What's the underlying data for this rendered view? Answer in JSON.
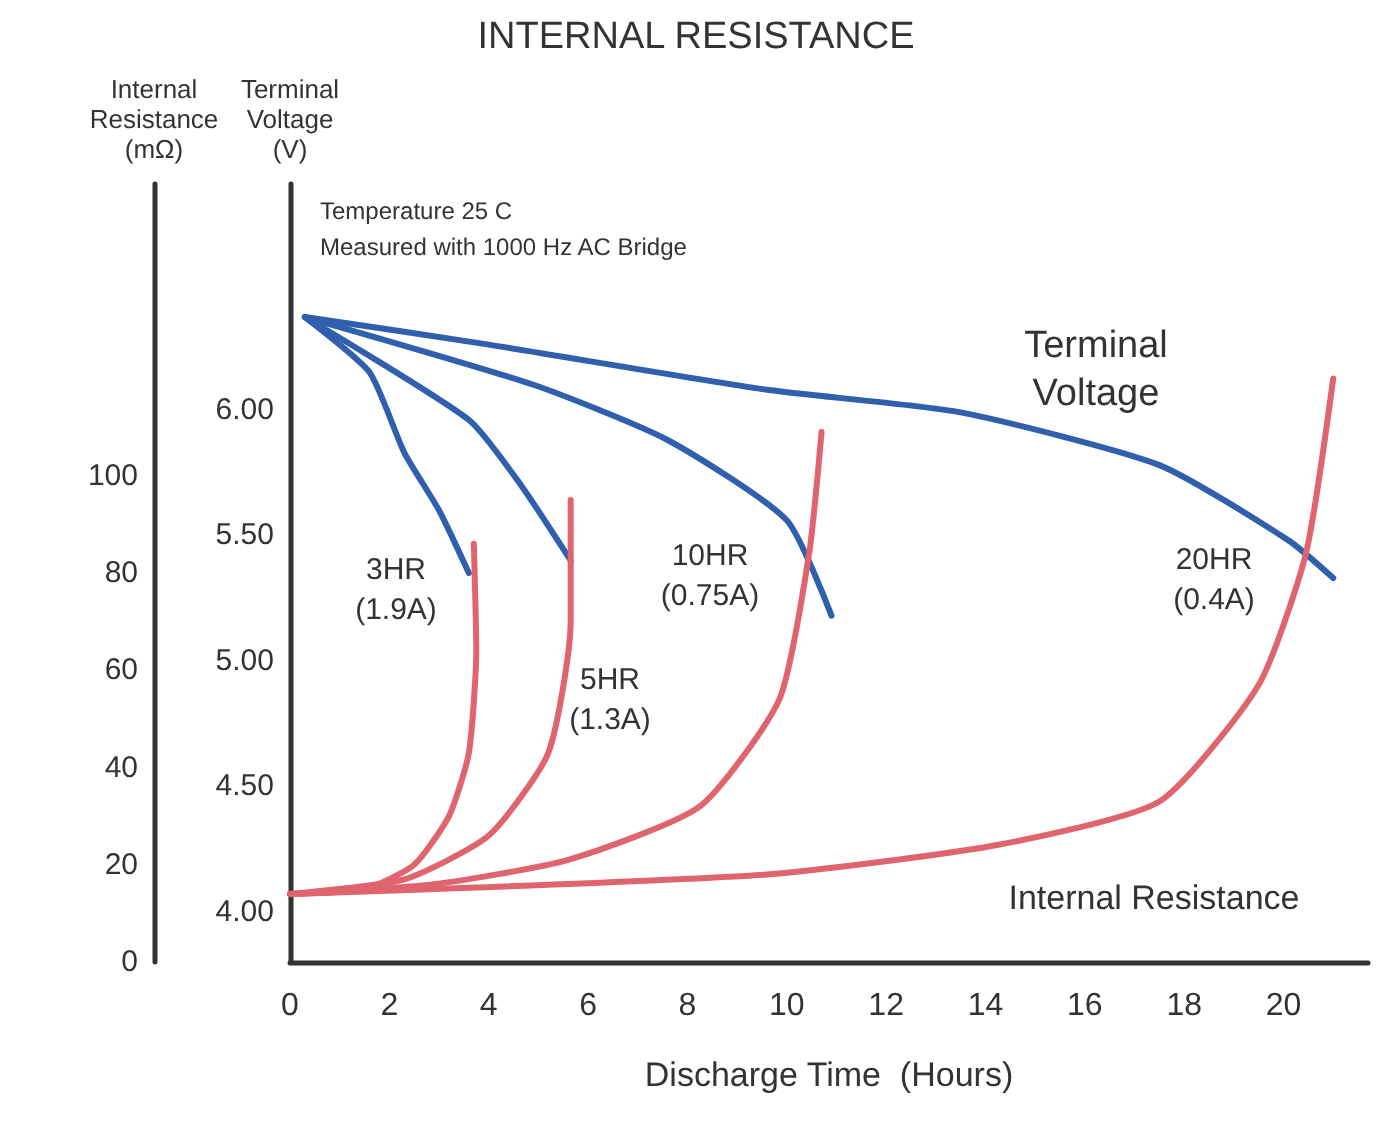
{
  "chart_data": {
    "type": "line",
    "title": "INTERNAL RESISTANCE",
    "xlabel": "Discharge Time  (Hours)",
    "ylabel": "Terminal Voltage (V)",
    "y2label": "Internal Resistance (mΩ)",
    "xlim": [
      0,
      21.7
    ],
    "xticks": [
      0,
      2,
      4,
      6,
      8,
      10,
      12,
      14,
      16,
      18,
      20
    ],
    "ylim": [
      3.8,
      6.9
    ],
    "yticks": [
      {
        "value": 4,
        "label": "4.00"
      },
      {
        "value": 4.5,
        "label": "4.50"
      },
      {
        "value": 5,
        "label": "5.00"
      },
      {
        "value": 5.5,
        "label": "5.50"
      },
      {
        "value": 6,
        "label": "6.00"
      }
    ],
    "y2lim": [
      0,
      160
    ],
    "y2ticks": [
      0,
      20,
      40,
      60,
      80,
      100
    ],
    "grid": false,
    "marker": "none",
    "line_style": "solid",
    "series": [
      {
        "color": "#2f5fad",
        "x": [
          0.3,
          1.6,
          2.3,
          3.0,
          3.6
        ],
        "values": [
          6.37,
          6.15,
          5.83,
          5.6,
          5.35
        ]
      },
      {
        "color": "#2f5fad",
        "x": [
          0.3,
          3.6,
          4.65,
          5.65
        ],
        "values": [
          6.37,
          5.96,
          5.7,
          5.4
        ]
      },
      {
        "color": "#2f5fad",
        "x": [
          0.3,
          4.9,
          7.6,
          10.0,
          10.9
        ],
        "values": [
          6.37,
          6.1,
          5.88,
          5.56,
          5.18
        ]
      },
      {
        "color": "#2f5fad",
        "x": [
          0.3,
          4.0,
          9.6,
          13.5,
          17.5,
          20.1,
          21.0
        ],
        "values": [
          6.37,
          6.26,
          6.08,
          5.99,
          5.78,
          5.48,
          5.33
        ]
      },
      {
        "color": "#e0646e",
        "axis": "y2",
        "x": [
          0,
          1.5,
          2.5,
          3.2,
          3.6,
          3.75,
          3.7
        ],
        "values": [
          14,
          15,
          20,
          30,
          43,
          64,
          86
        ]
      },
      {
        "color": "#e0646e",
        "axis": "y2",
        "x": [
          0,
          2.3,
          4.0,
          5.2,
          5.65,
          5.65
        ],
        "values": [
          14,
          17,
          26,
          43,
          70,
          95
        ]
      },
      {
        "color": "#e0646e",
        "axis": "y2",
        "x": [
          0,
          2.9,
          5.6,
          8.25,
          9.85,
          10.45,
          10.7
        ],
        "values": [
          14,
          16,
          21,
          32,
          54,
          84,
          109
        ]
      },
      {
        "color": "#e0646e",
        "axis": "y2",
        "x": [
          0,
          9.6,
          14.2,
          17.5,
          19.5,
          20.45,
          21.0
        ],
        "values": [
          14,
          18,
          24,
          33,
          57,
          84,
          120
        ]
      }
    ],
    "annotations": [
      "Temperature 25 C",
      "Measured with 1000 Hz AC Bridge",
      "3HR\n(1.9A)",
      "5HR\n(1.3A)",
      "10HR\n(0.75A)",
      "20HR\n(0.4A)",
      "Terminal\nVoltage",
      "Internal Resistance"
    ]
  }
}
